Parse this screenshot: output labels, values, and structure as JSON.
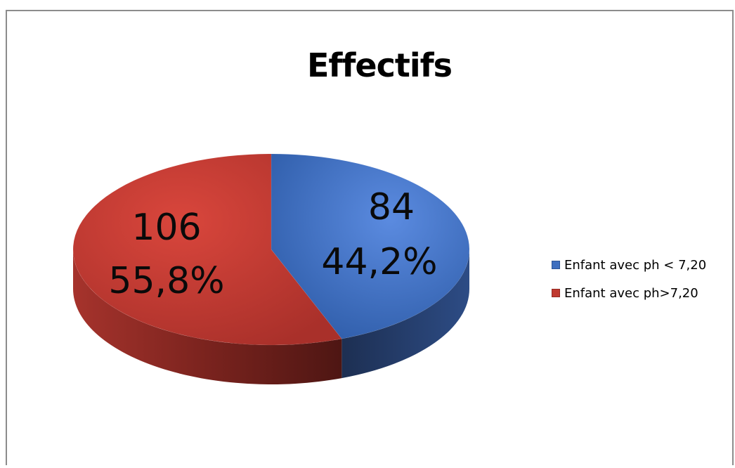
{
  "chart_data": {
    "type": "pie",
    "title": "Effectifs",
    "slices": [
      {
        "label": "Enfant avec ph < 7,20",
        "value": 84,
        "percent_label": "44,2%",
        "color": "#3e6fbf"
      },
      {
        "label": "Enfant avec ph>7,20",
        "value": 106,
        "percent_label": "55,8%",
        "color": "#c0392f"
      }
    ],
    "data_labels": [
      {
        "value_text": "84",
        "percent_text": "44,2%"
      },
      {
        "value_text": "106",
        "percent_text": "55,8%"
      }
    ],
    "legend_placement": "right",
    "style": "3d"
  }
}
